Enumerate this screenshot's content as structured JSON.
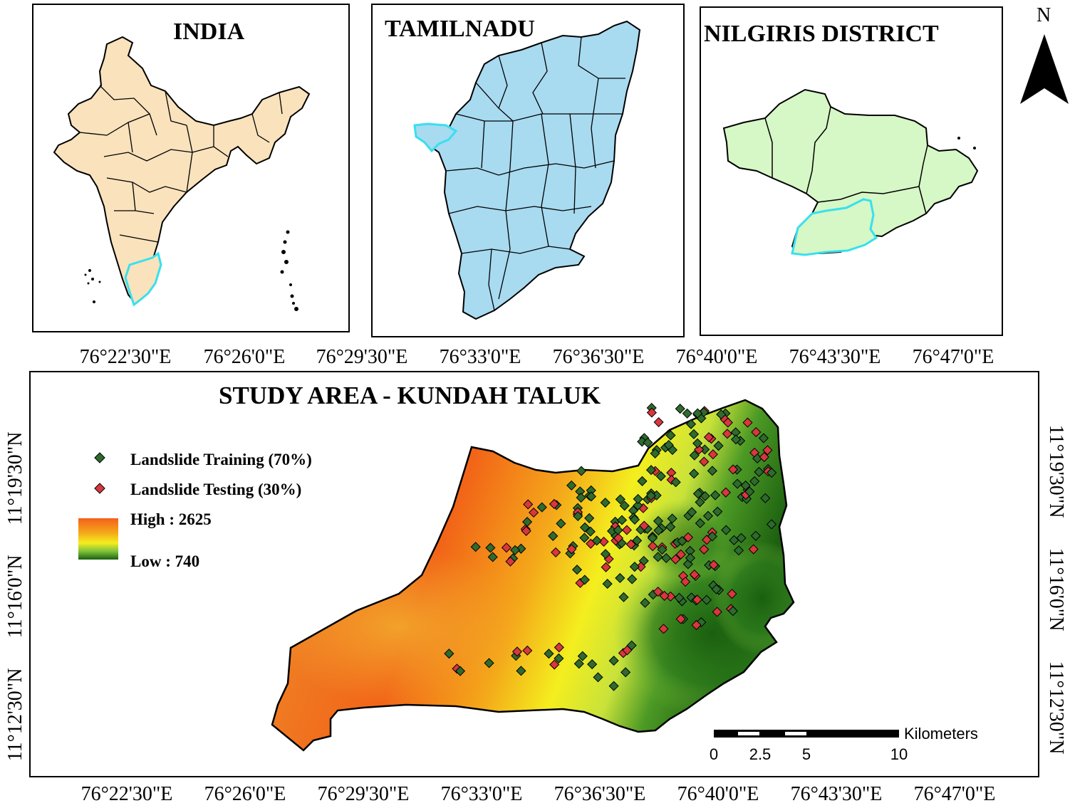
{
  "insets": {
    "india": {
      "title": "INDIA"
    },
    "tamilnadu": {
      "title": "TAMILNADU"
    },
    "nilgiris": {
      "title": "NILGIRIS DISTRICT"
    }
  },
  "north_arrow": {
    "label": "N"
  },
  "main_map": {
    "title": "STUDY AREA - KUNDAH TALUK",
    "top_ticks": [
      "76°22'30\"E",
      "76°26'0\"E",
      "76°29'30\"E",
      "76°33'0\"E",
      "76°36'30\"E",
      "76°40'0\"E",
      "76°43'30\"E",
      "76°47'0\"E"
    ],
    "bottom_ticks": [
      "76°22'30\"E",
      "76°26'0\"E",
      "76°29'30\"E",
      "76°33'0\"E",
      "76°36'30\"E",
      "76°40'0\"E",
      "76°43'30\"E",
      "76°47'0\"E"
    ],
    "left_ticks": [
      "11°19'30\"N",
      "11°16'0\"N",
      "11°12'30\"N"
    ],
    "right_ticks": [
      "11°19'30\"N",
      "11°16'0\"N",
      "11°12'30\"N"
    ]
  },
  "legend": {
    "training_label": "Landslide Training (70%)",
    "testing_label": "Landslide Testing (30%)",
    "high_label": "High : 2625",
    "low_label": "Low : 740",
    "colors": {
      "training": "#2e6b2e",
      "testing": "#d9363e",
      "high": "#f26a1b",
      "mid": "#f5f21a",
      "low": "#1e6a12"
    }
  },
  "scale_bar": {
    "unit": "Kilometers",
    "labels": [
      "0",
      "2.5",
      "5",
      "10"
    ]
  },
  "colors": {
    "india_fill": "#f9e2bc",
    "tamilnadu_fill": "#a8daf0",
    "nilgiris_fill": "#d6f7c6",
    "highlight": "#38e0ee"
  }
}
